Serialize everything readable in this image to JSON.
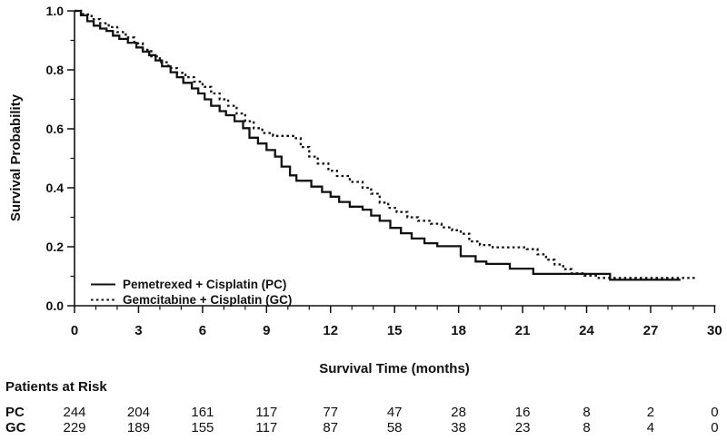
{
  "chart_data": {
    "type": "line",
    "subtype": "kaplan-meier-step",
    "title": "",
    "xlabel": "Survival Time (months)",
    "ylabel": "Survival Probability",
    "xlim": [
      0,
      30
    ],
    "ylim": [
      0.0,
      1.0
    ],
    "grid": false,
    "legend_position": "inside-bottom-left",
    "x_ticks": [
      {
        "value": 0,
        "label": "0"
      },
      {
        "value": 3,
        "label": "3"
      },
      {
        "value": 6,
        "label": "6"
      },
      {
        "value": 9,
        "label": "9"
      },
      {
        "value": 12,
        "label": "12"
      },
      {
        "value": 15,
        "label": "15"
      },
      {
        "value": 18,
        "label": "18"
      },
      {
        "value": 21,
        "label": "21"
      },
      {
        "value": 24,
        "label": "24"
      },
      {
        "value": 27,
        "label": "27"
      },
      {
        "value": 30,
        "label": "30"
      }
    ],
    "x_minor_ticks": [
      1,
      2,
      4,
      5,
      7,
      8,
      10,
      11,
      13,
      14,
      16,
      17,
      19,
      20,
      22,
      23,
      25,
      26,
      28,
      29
    ],
    "y_ticks": [
      {
        "value": 0.0,
        "label": "0.0"
      },
      {
        "value": 0.2,
        "label": "0.2"
      },
      {
        "value": 0.4,
        "label": "0.4"
      },
      {
        "value": 0.6,
        "label": "0.6"
      },
      {
        "value": 0.8,
        "label": "0.8"
      },
      {
        "value": 1.0,
        "label": "1.0"
      }
    ],
    "y_minor_ticks": [
      0.1,
      0.3,
      0.5,
      0.7,
      0.9
    ],
    "series": [
      {
        "name": "Pemetrexed + Cisplatin (PC)",
        "abbr": "PC",
        "line_style": "solid",
        "color": "#111111",
        "steps": [
          [
            0,
            1.0
          ],
          [
            0.3,
            0.985
          ],
          [
            0.6,
            0.965
          ],
          [
            0.9,
            0.95
          ],
          [
            1.2,
            0.94
          ],
          [
            1.5,
            0.932
          ],
          [
            1.8,
            0.916
          ],
          [
            2.1,
            0.905
          ],
          [
            2.5,
            0.892
          ],
          [
            2.9,
            0.876
          ],
          [
            3.2,
            0.862
          ],
          [
            3.5,
            0.85
          ],
          [
            3.8,
            0.832
          ],
          [
            4.1,
            0.812
          ],
          [
            4.5,
            0.792
          ],
          [
            4.8,
            0.775
          ],
          [
            5.1,
            0.756
          ],
          [
            5.5,
            0.737
          ],
          [
            5.8,
            0.72
          ],
          [
            6.1,
            0.7
          ],
          [
            6.4,
            0.678
          ],
          [
            6.8,
            0.66
          ],
          [
            7.1,
            0.646
          ],
          [
            7.5,
            0.626
          ],
          [
            7.9,
            0.602
          ],
          [
            8.2,
            0.57
          ],
          [
            8.6,
            0.55
          ],
          [
            9.0,
            0.528
          ],
          [
            9.4,
            0.506
          ],
          [
            9.7,
            0.472
          ],
          [
            10.1,
            0.442
          ],
          [
            10.4,
            0.424
          ],
          [
            11.1,
            0.404
          ],
          [
            11.6,
            0.386
          ],
          [
            12.0,
            0.37
          ],
          [
            12.4,
            0.352
          ],
          [
            12.9,
            0.336
          ],
          [
            13.5,
            0.326
          ],
          [
            13.9,
            0.306
          ],
          [
            14.3,
            0.288
          ],
          [
            14.8,
            0.264
          ],
          [
            15.3,
            0.246
          ],
          [
            15.8,
            0.228
          ],
          [
            16.4,
            0.212
          ],
          [
            17.0,
            0.202
          ],
          [
            18.1,
            0.168
          ],
          [
            18.8,
            0.15
          ],
          [
            19.3,
            0.142
          ],
          [
            20.4,
            0.126
          ],
          [
            21.5,
            0.108
          ],
          [
            25.1,
            0.088
          ],
          [
            28.4,
            0.088
          ]
        ]
      },
      {
        "name": "Gemcitabine + Cisplatin (GC)",
        "abbr": "GC",
        "line_style": "dotted",
        "color": "#111111",
        "steps": [
          [
            0,
            1.0
          ],
          [
            0.4,
            0.988
          ],
          [
            0.8,
            0.972
          ],
          [
            1.2,
            0.958
          ],
          [
            1.6,
            0.945
          ],
          [
            2.0,
            0.928
          ],
          [
            2.4,
            0.91
          ],
          [
            2.8,
            0.89
          ],
          [
            3.2,
            0.868
          ],
          [
            3.6,
            0.846
          ],
          [
            4.0,
            0.826
          ],
          [
            4.4,
            0.806
          ],
          [
            4.8,
            0.79
          ],
          [
            5.2,
            0.775
          ],
          [
            5.6,
            0.76
          ],
          [
            6.0,
            0.742
          ],
          [
            6.4,
            0.72
          ],
          [
            6.8,
            0.7
          ],
          [
            7.2,
            0.678
          ],
          [
            7.6,
            0.652
          ],
          [
            8.0,
            0.626
          ],
          [
            8.4,
            0.602
          ],
          [
            8.8,
            0.586
          ],
          [
            9.3,
            0.576
          ],
          [
            10.3,
            0.568
          ],
          [
            10.6,
            0.538
          ],
          [
            11.0,
            0.506
          ],
          [
            11.4,
            0.482
          ],
          [
            11.9,
            0.458
          ],
          [
            12.3,
            0.44
          ],
          [
            12.9,
            0.42
          ],
          [
            13.5,
            0.4
          ],
          [
            13.9,
            0.38
          ],
          [
            14.3,
            0.35
          ],
          [
            14.7,
            0.332
          ],
          [
            15.1,
            0.318
          ],
          [
            15.6,
            0.3
          ],
          [
            16.1,
            0.288
          ],
          [
            16.7,
            0.278
          ],
          [
            17.2,
            0.266
          ],
          [
            17.7,
            0.256
          ],
          [
            18.1,
            0.244
          ],
          [
            18.5,
            0.218
          ],
          [
            19.0,
            0.206
          ],
          [
            19.6,
            0.198
          ],
          [
            21.2,
            0.192
          ],
          [
            21.7,
            0.174
          ],
          [
            22.1,
            0.156
          ],
          [
            22.5,
            0.14
          ],
          [
            22.9,
            0.124
          ],
          [
            23.3,
            0.11
          ],
          [
            23.9,
            0.102
          ],
          [
            24.5,
            0.094
          ],
          [
            29.2,
            0.094
          ]
        ]
      }
    ]
  },
  "risk_table": {
    "title": "Patients at Risk",
    "time_points": [
      0,
      3,
      6,
      9,
      12,
      15,
      18,
      21,
      24,
      27,
      30
    ],
    "rows": [
      {
        "label": "PC",
        "counts": [
          244,
          204,
          161,
          117,
          77,
          47,
          28,
          16,
          8,
          2,
          0
        ]
      },
      {
        "label": "GC",
        "counts": [
          229,
          189,
          155,
          117,
          87,
          58,
          38,
          23,
          8,
          4,
          0
        ]
      }
    ]
  },
  "colors": {
    "line": "#111111",
    "text": "#111111",
    "background": "#ffffff"
  }
}
